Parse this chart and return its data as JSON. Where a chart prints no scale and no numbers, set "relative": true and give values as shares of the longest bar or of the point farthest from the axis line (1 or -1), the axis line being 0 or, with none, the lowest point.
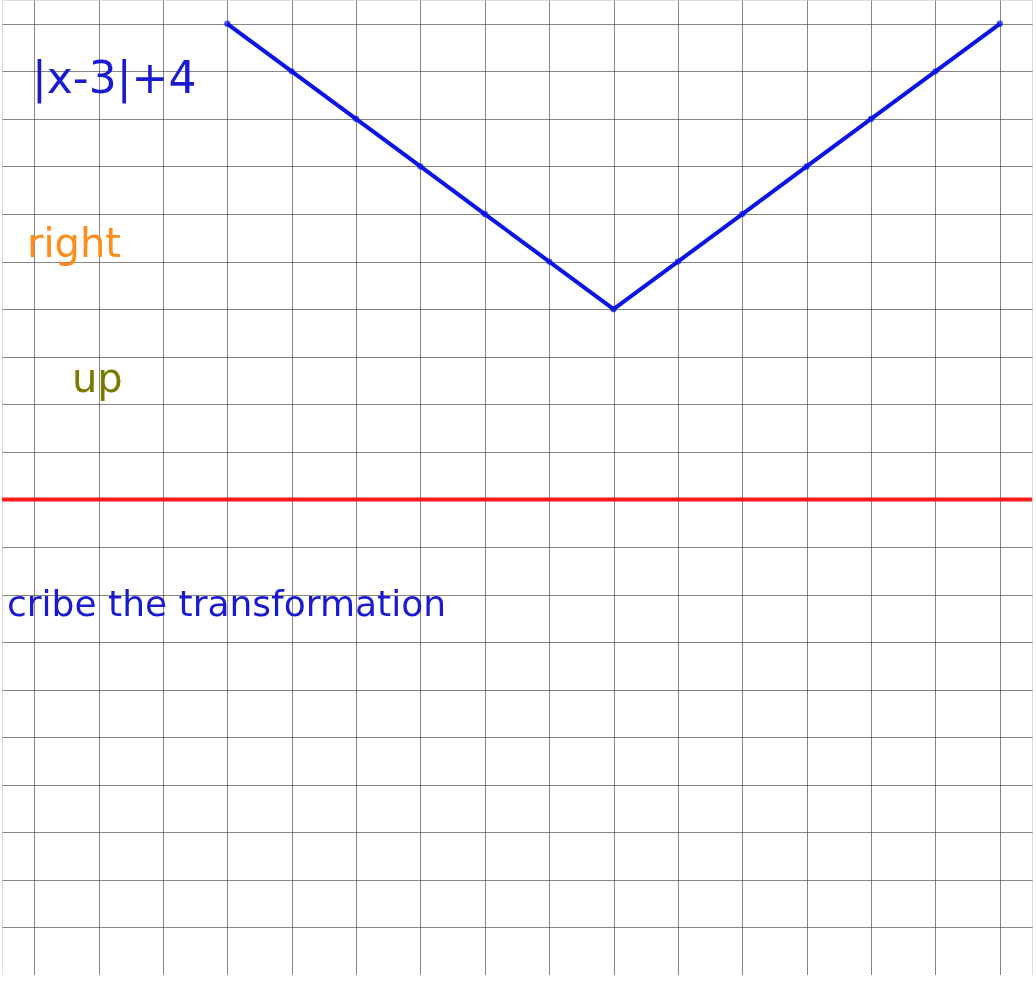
{
  "chart_data": {
    "type": "line",
    "relative": true,
    "categories": [
      null,
      null,
      null,
      null,
      null,
      null,
      null,
      null,
      null,
      null,
      null,
      null,
      null
    ],
    "series": [
      {
        "color": "#0a14e6",
        "values": [
          1,
          0.9,
          0.8,
          0.7,
          0.6,
          0.5,
          0.4,
          0.5,
          0.6,
          0.7,
          0.8,
          0.9,
          1
        ]
      }
    ],
    "annotations": [
      "|x-3|+4",
      "right",
      "up",
      "cribe the transformation"
    ],
    "grid": true,
    "marker": "circle",
    "line_style": "solid",
    "tick_labels": false
  }
}
